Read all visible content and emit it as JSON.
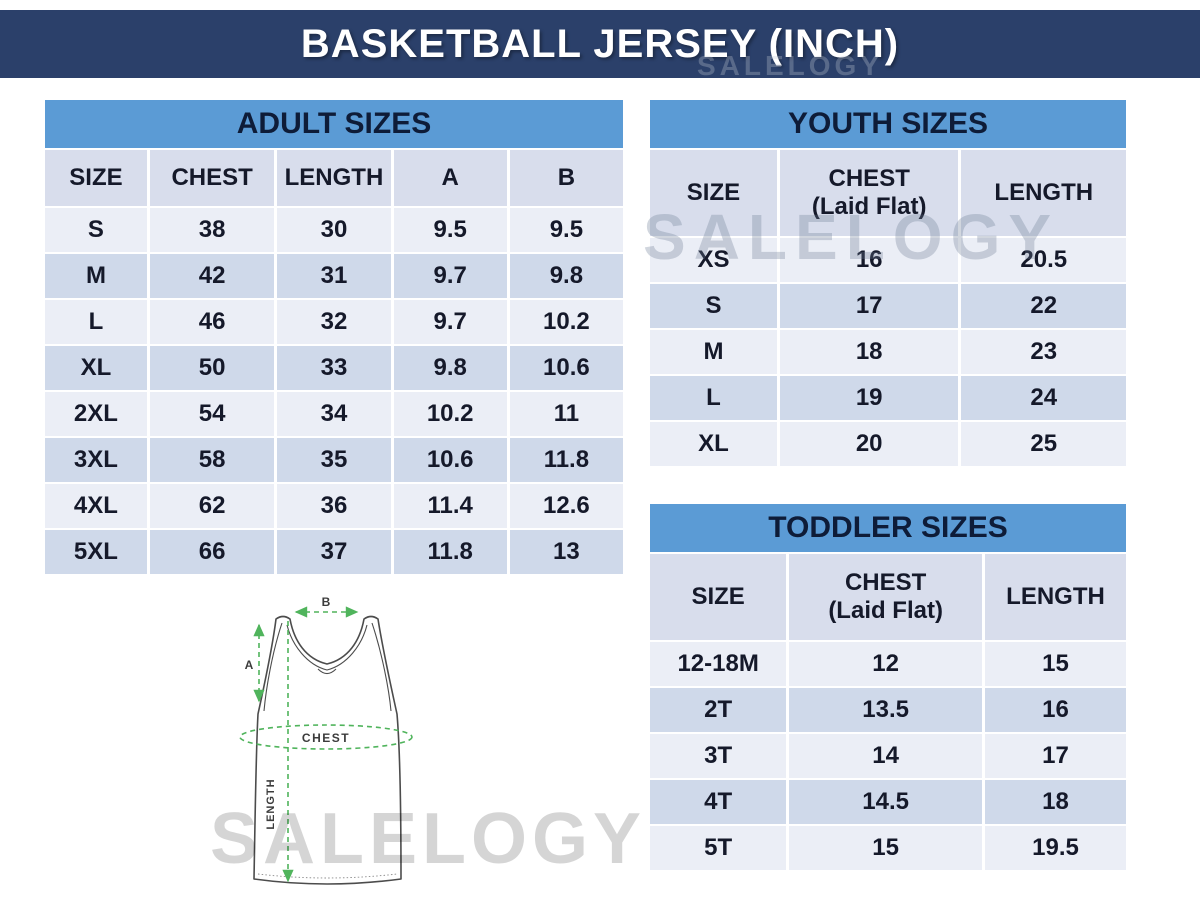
{
  "page": {
    "title": "BASKETBALL JERSEY (INCH)",
    "watermark": "SALELOGY"
  },
  "colors": {
    "title_bar_bg": "#2b406a",
    "section_header_bg": "#5b9bd5",
    "column_header_bg": "#d8ddec",
    "row_light": "#ebeef6",
    "row_dark": "#cfd9ea",
    "text_dark": "#15192a",
    "diagram_green": "#50b45c",
    "watermark_gray": "#c9c9c9"
  },
  "adult_table": {
    "title": "ADULT SIZES",
    "columns": [
      "SIZE",
      "CHEST",
      "LENGTH",
      "A",
      "B"
    ],
    "rows": [
      [
        "S",
        "38",
        "30",
        "9.5",
        "9.5"
      ],
      [
        "M",
        "42",
        "31",
        "9.7",
        "9.8"
      ],
      [
        "L",
        "46",
        "32",
        "9.7",
        "10.2"
      ],
      [
        "XL",
        "50",
        "33",
        "9.8",
        "10.6"
      ],
      [
        "2XL",
        "54",
        "34",
        "10.2",
        "11"
      ],
      [
        "3XL",
        "58",
        "35",
        "10.6",
        "11.8"
      ],
      [
        "4XL",
        "62",
        "36",
        "11.4",
        "12.6"
      ],
      [
        "5XL",
        "66",
        "37",
        "11.8",
        "13"
      ]
    ]
  },
  "youth_table": {
    "title": "YOUTH SIZES",
    "columns": [
      {
        "label": "SIZE",
        "sub": ""
      },
      {
        "label": "CHEST",
        "sub": "(Laid Flat)"
      },
      {
        "label": "LENGTH",
        "sub": ""
      }
    ],
    "rows": [
      [
        "XS",
        "16",
        "20.5"
      ],
      [
        "S",
        "17",
        "22"
      ],
      [
        "M",
        "18",
        "23"
      ],
      [
        "L",
        "19",
        "24"
      ],
      [
        "XL",
        "20",
        "25"
      ]
    ]
  },
  "toddler_table": {
    "title": "TODDLER SIZES",
    "columns": [
      {
        "label": "SIZE",
        "sub": ""
      },
      {
        "label": "CHEST",
        "sub": "(Laid Flat)"
      },
      {
        "label": "LENGTH",
        "sub": ""
      }
    ],
    "rows": [
      [
        "12-18M",
        "12",
        "15"
      ],
      [
        "2T",
        "13.5",
        "16"
      ],
      [
        "3T",
        "14",
        "17"
      ],
      [
        "4T",
        "14.5",
        "18"
      ],
      [
        "5T",
        "15",
        "19.5"
      ]
    ]
  },
  "diagram": {
    "labels": {
      "a": "A",
      "b": "B",
      "chest": "CHEST",
      "length": "LENGTH"
    }
  }
}
